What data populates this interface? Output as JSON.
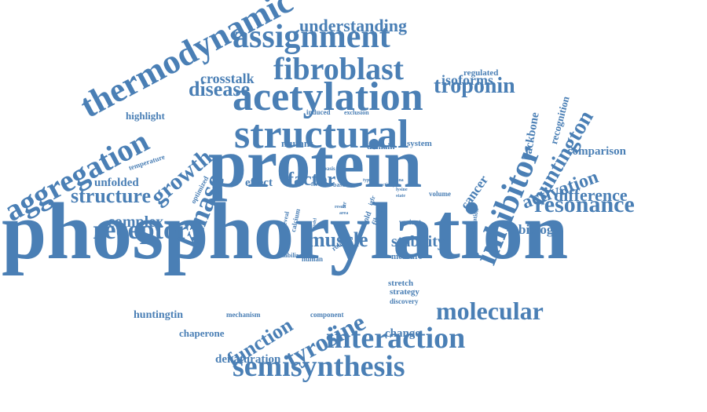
{
  "color": "#4a7fb5",
  "words": [
    "phosphorylation",
    "protein",
    "structural",
    "acetylation",
    "assignment",
    "thermodynamic",
    "aggregation",
    "fibroblast",
    "inhibitor",
    "semisynthesis",
    "interaction",
    "molecular",
    "tyrosine",
    "receptor",
    "structure",
    "huntington",
    "resonance",
    "troponin",
    "kinase",
    "growth",
    "disease",
    "understanding",
    "muscle",
    "function",
    "activation",
    "difference",
    "stability",
    "factor",
    "complex",
    "crosstalk",
    "isoforms",
    "comparison",
    "biology",
    "cancer",
    "denaturation",
    "change",
    "unfolded",
    "effect",
    "mutant",
    "chaperone",
    "huntingtin",
    "highlight",
    "backbone",
    "recognition",
    "regulated",
    "domain",
    "system",
    "mechanism",
    "component",
    "stretch",
    "strategy",
    "discovery",
    "measure",
    "human",
    "temperature",
    "optimized",
    "induced",
    "exclusion",
    "volume",
    "modification",
    "variant",
    "calcium",
    "reveal",
    "stabilize",
    "role",
    "cold",
    "fibril",
    "basis",
    "form",
    "base",
    "water",
    "activity",
    "lysine",
    "state",
    "str",
    "igfr",
    "model",
    "result",
    "area",
    "dna",
    "type"
  ]
}
